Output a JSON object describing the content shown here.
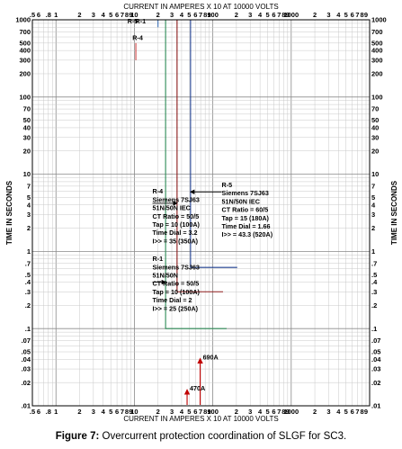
{
  "caption": {
    "label": "Figure 7:",
    "text": " Overcurrent protection coordination of SLGF for SC3."
  },
  "chart_data": {
    "type": "line",
    "x_scale": "log",
    "y_scale": "log",
    "xlabel_top": "CURRENT IN AMPERES X 10 AT 10000 VOLTS",
    "xlabel_bottom": "CURRENT IN AMPERES X 10 AT 10000 VOLTS",
    "ylabel": "TIME IN SECONDS",
    "ylabel_right": "TIME IN SECONDS",
    "xlim": [
      0.5,
      10000
    ],
    "ylim": [
      0.01,
      1000
    ],
    "grid": true,
    "x_tick_labels": [
      {
        "x": 0.5,
        "label": ".5"
      },
      {
        "x": 0.6,
        "label": "6"
      },
      {
        "x": 0.8,
        "label": ".8"
      },
      {
        "x": 1,
        "label": "1"
      },
      {
        "x": 2,
        "label": "2"
      },
      {
        "x": 3,
        "label": "3"
      },
      {
        "x": 4,
        "label": "4"
      },
      {
        "x": 5,
        "label": "5"
      },
      {
        "x": 6,
        "label": "6"
      },
      {
        "x": 7,
        "label": "7"
      },
      {
        "x": 8,
        "label": "8"
      },
      {
        "x": 9,
        "label": "9"
      },
      {
        "x": 10,
        "label": "10"
      },
      {
        "x": 20,
        "label": "2"
      },
      {
        "x": 30,
        "label": "3"
      },
      {
        "x": 40,
        "label": "4"
      },
      {
        "x": 50,
        "label": "5"
      },
      {
        "x": 60,
        "label": "6"
      },
      {
        "x": 70,
        "label": "7"
      },
      {
        "x": 80,
        "label": "8"
      },
      {
        "x": 90,
        "label": "9"
      },
      {
        "x": 100,
        "label": "100"
      },
      {
        "x": 200,
        "label": "2"
      },
      {
        "x": 300,
        "label": "3"
      },
      {
        "x": 400,
        "label": "4"
      },
      {
        "x": 500,
        "label": "5"
      },
      {
        "x": 600,
        "label": "6"
      },
      {
        "x": 700,
        "label": "7"
      },
      {
        "x": 800,
        "label": "8"
      },
      {
        "x": 900,
        "label": "9"
      },
      {
        "x": 1000,
        "label": "1000"
      },
      {
        "x": 2000,
        "label": "2"
      },
      {
        "x": 3000,
        "label": "3"
      },
      {
        "x": 4000,
        "label": "4"
      },
      {
        "x": 5000,
        "label": "5"
      },
      {
        "x": 6000,
        "label": "6"
      },
      {
        "x": 7000,
        "label": "7"
      },
      {
        "x": 8000,
        "label": "8"
      },
      {
        "x": 9000,
        "label": "9"
      }
    ],
    "y_tick_labels": [
      {
        "y": 0.01,
        "label": ".01"
      },
      {
        "y": 0.02,
        "label": ".02"
      },
      {
        "y": 0.03,
        "label": ".03"
      },
      {
        "y": 0.04,
        "label": ".04"
      },
      {
        "y": 0.05,
        "label": ".05"
      },
      {
        "y": 0.07,
        "label": ".07"
      },
      {
        "y": 0.1,
        "label": ".1"
      },
      {
        "y": 0.2,
        "label": ".2"
      },
      {
        "y": 0.3,
        "label": ".3"
      },
      {
        "y": 0.4,
        "label": ".4"
      },
      {
        "y": 0.5,
        "label": ".5"
      },
      {
        "y": 0.7,
        "label": ".7"
      },
      {
        "y": 1,
        "label": "1"
      },
      {
        "y": 2,
        "label": "2"
      },
      {
        "y": 3,
        "label": "3"
      },
      {
        "y": 4,
        "label": "4"
      },
      {
        "y": 5,
        "label": "5"
      },
      {
        "y": 7,
        "label": "7"
      },
      {
        "y": 10,
        "label": "10"
      },
      {
        "y": 20,
        "label": "20"
      },
      {
        "y": 30,
        "label": "30"
      },
      {
        "y": 40,
        "label": "40"
      },
      {
        "y": 50,
        "label": "50"
      },
      {
        "y": 70,
        "label": "70"
      },
      {
        "y": 100,
        "label": "100"
      },
      {
        "y": 200,
        "label": "200"
      },
      {
        "y": 300,
        "label": "300"
      },
      {
        "y": 400,
        "label": "400"
      },
      {
        "y": 500,
        "label": "500"
      },
      {
        "y": 700,
        "label": "700"
      },
      {
        "y": 1000,
        "label": "1000"
      }
    ],
    "series": [
      {
        "name": "R-1",
        "color": "#2e8b57",
        "points": [
          [
            25,
            1000
          ],
          [
            25,
            0.1
          ],
          [
            150,
            0.1
          ]
        ]
      },
      {
        "name": "R-4",
        "color": "#8b1a1a",
        "points": [
          [
            35,
            1000
          ],
          [
            35,
            0.3
          ],
          [
            135,
            0.3
          ]
        ]
      },
      {
        "name": "R-5",
        "color": "#1f3f8f",
        "points": [
          [
            52,
            1000
          ],
          [
            52,
            0.62
          ],
          [
            205,
            0.62
          ]
        ]
      },
      {
        "name": "",
        "color": "#3b6fb6",
        "points": [
          [
            20,
            1000
          ],
          [
            20,
            800
          ]
        ]
      }
    ],
    "annotations": [
      {
        "x": 17,
        "y": 0.75,
        "lines": [
          "R-1",
          "Siemens 7SJ63",
          "51N/50N",
          "CT Ratio = 50/5",
          "Tap = 10 (100A)",
          "Time Dial = 2",
          "I>> = 25 (250A)"
        ]
      },
      {
        "x": 17,
        "y": 5.6,
        "lines": [
          "R-4",
          "Siemens 7SJ63",
          "51N/50N IEC",
          "CT Ratio = 50/5",
          "Tap = 10 (100A)",
          "Time Dial = 3.2",
          "I>> = 35 (350A)"
        ]
      },
      {
        "x": 130,
        "y": 6.8,
        "lines": [
          "R-5",
          "Siemens 7SJ63",
          "51N/50N IEC",
          "CT Ratio = 60/5",
          "Tap = 15 (180A)",
          "Time Dial = 1.66",
          "I>> = 43.3 (520A)"
        ]
      }
    ],
    "pointers": [
      {
        "from": [
          17,
          0.4
        ],
        "to": [
          25,
          0.4
        ]
      },
      {
        "from": [
          17,
          4.2
        ],
        "to": [
          35,
          4.2
        ]
      },
      {
        "from": [
          130,
          5.9
        ],
        "to": [
          52,
          5.9
        ]
      }
    ],
    "fault_markers": [
      {
        "label": "470A",
        "x": 47,
        "y": 0.017
      },
      {
        "label": "690A",
        "x": 69,
        "y": 0.043
      }
    ],
    "top_markers": [
      {
        "label": "R-5",
        "x": 9.5,
        "y": 900
      },
      {
        "label": "R-1",
        "x": 12,
        "y": 900
      },
      {
        "label": "R-4",
        "x": 11,
        "y": 550
      }
    ]
  }
}
